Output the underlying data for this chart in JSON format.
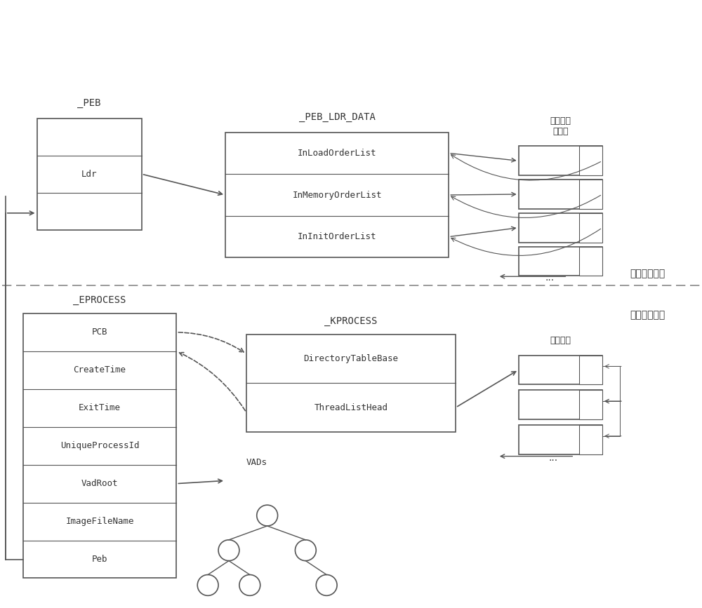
{
  "bg_color": "#ffffff",
  "line_color": "#555555",
  "text_color": "#333333",
  "dashed_line_y": 0.47,
  "user_space_label": "用户地址空间",
  "kernel_space_label": "内核地址空间",
  "peb_label": "_PEB",
  "peb_ldr_label": "_PEB_LDR_DATA",
  "kprocess_label": "_KPROCESS",
  "eprocess_label": "_EPROCESS",
  "module_chain_label": "加载的模\n块链表",
  "thread_chain_label": "线程链表",
  "vads_label": "VADs",
  "peb_fields": [
    "",
    "Ldr",
    ""
  ],
  "peb_ldr_fields": [
    "InLoadOrderList",
    "InMemoryOrderList",
    "InInitOrderList"
  ],
  "kprocess_fields": [
    "DirectoryTableBase",
    "ThreadListHead"
  ],
  "eprocess_fields": [
    "PCB",
    "CreateTime",
    "ExitTime",
    "UniqueProcessId",
    "VadRoot",
    "ImageFileName",
    "Peb"
  ]
}
